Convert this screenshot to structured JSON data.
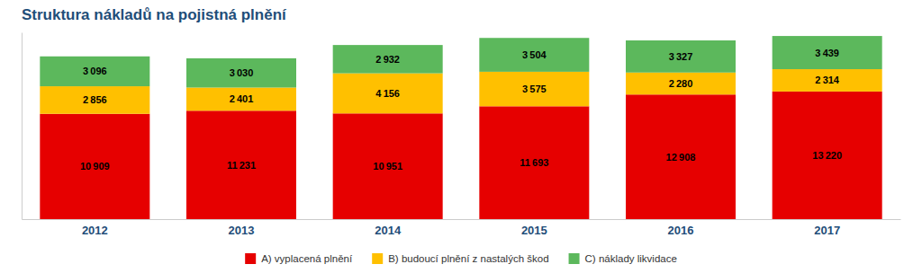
{
  "chart_data": {
    "type": "bar",
    "stacked": true,
    "title": "Struktura nákladů na pojistná plnění",
    "categories": [
      "2012",
      "2013",
      "2014",
      "2015",
      "2016",
      "2017"
    ],
    "series": [
      {
        "name": "A) vyplacená plnění",
        "color": "#e60000",
        "values": [
          10909,
          11231,
          10951,
          11693,
          12908,
          13220
        ],
        "value_labels": [
          "10 909",
          "11 231",
          "10 951",
          "11 693",
          "12 908",
          "13 220"
        ]
      },
      {
        "name": "B) budoucí plnění z nastalých škod",
        "color": "#ffc000",
        "values": [
          2856,
          2401,
          4156,
          3575,
          2280,
          2314
        ],
        "value_labels": [
          "2 856",
          "2 401",
          "4 156",
          "3 575",
          "2 280",
          "2 314"
        ]
      },
      {
        "name": "C) náklady likvidace",
        "color": "#5cb85c",
        "values": [
          3096,
          3030,
          2932,
          3504,
          3327,
          3439
        ],
        "value_labels": [
          "3 096",
          "3 030",
          "2 932",
          "3 504",
          "3 327",
          "3 439"
        ]
      }
    ],
    "ylim": [
      0,
      19352.46
    ],
    "data_labels": true,
    "tick_labels": "x",
    "grid": false,
    "legend": "bottom"
  }
}
